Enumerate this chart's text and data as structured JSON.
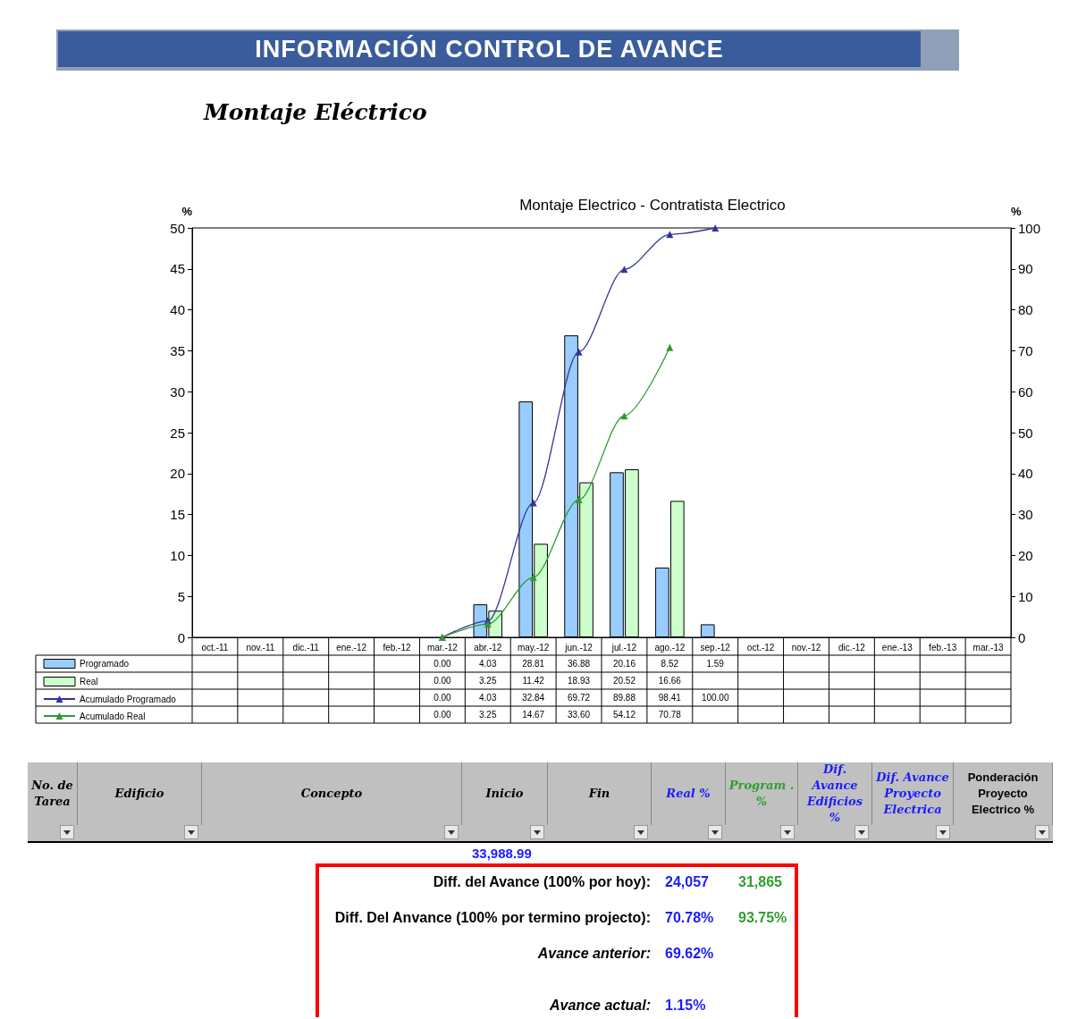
{
  "chart_data": {
    "type": "bar",
    "title": "INFORMACIÓN CONTROL DE AVANCE",
    "subtitle": "Montaje Eléctrico",
    "ylabel": "%",
    "y2label": "%",
    "categories": [
      "oct.-11",
      "nov.-11",
      "dic.-11",
      "ene.-12",
      "feb.-12",
      "mar.-12",
      "abr.-12",
      "may.-12",
      "jun.-12",
      "jul.-12",
      "ago.-12",
      "sep.-12",
      "oct.-12",
      "nov.-12",
      "dic.-12",
      "ene.-13",
      "feb.-13",
      "mar.-13"
    ],
    "series": [
      {
        "name": "Programado",
        "color": "#99ccff",
        "values": [
          null,
          null,
          null,
          null,
          null,
          0.0,
          4.03,
          28.81,
          36.88,
          20.16,
          8.52,
          1.59,
          null,
          null,
          null,
          null,
          null,
          null
        ],
        "value_labels": [
          null,
          null,
          null,
          null,
          null,
          "0.00",
          "4.03",
          "28.81",
          "36.88",
          "20.16",
          "8.52",
          "1.59",
          null,
          null,
          null,
          null,
          null,
          null
        ]
      },
      {
        "name": "Real",
        "color": "#ccffcc",
        "values": [
          null,
          null,
          null,
          null,
          null,
          0.0,
          3.25,
          11.42,
          18.93,
          20.52,
          16.66,
          null,
          null,
          null,
          null,
          null,
          null,
          null
        ],
        "value_labels": [
          null,
          null,
          null,
          null,
          null,
          "0.00",
          "3.25",
          "11.42",
          "18.93",
          "20.52",
          "16.66",
          null,
          null,
          null,
          null,
          null,
          null,
          null
        ]
      },
      {
        "name": "Acumulado Programado",
        "type": "line",
        "axis": "y2",
        "color": "#333399",
        "values": [
          null,
          null,
          null,
          null,
          null,
          0.0,
          4.03,
          32.84,
          69.72,
          89.88,
          98.41,
          100.0,
          null,
          null,
          null,
          null,
          null,
          null
        ],
        "value_labels": [
          null,
          null,
          null,
          null,
          null,
          "0.00",
          "4.03",
          "32.84",
          "69.72",
          "89.88",
          "98.41",
          "100.00",
          null,
          null,
          null,
          null,
          null,
          null
        ]
      },
      {
        "name": "Acumulado Real",
        "type": "line",
        "axis": "y2",
        "color": "#339933",
        "values": [
          null,
          null,
          null,
          null,
          null,
          0.0,
          3.25,
          14.67,
          33.6,
          54.12,
          70.78,
          null,
          null,
          null,
          null,
          null,
          null,
          null
        ],
        "value_labels": [
          null,
          null,
          null,
          null,
          null,
          "0.00",
          "3.25",
          "14.67",
          "33.60",
          "54.12",
          "70.78",
          null,
          null,
          null,
          null,
          null,
          null,
          null
        ]
      }
    ],
    "ylim": [
      0,
      50
    ],
    "yticks": [
      0,
      5,
      10,
      15,
      20,
      25,
      30,
      35,
      40,
      45,
      50
    ],
    "y2lim": [
      0,
      100
    ],
    "y2ticks": [
      0,
      10,
      20,
      30,
      40,
      50,
      60,
      70,
      80,
      90,
      100
    ],
    "grid": false,
    "legend": "bottom",
    "marker": "triangle",
    "line_style": "solid",
    "annotations": [
      "Montaje Electrico - Contratista Electrico",
      "No. de Tarea",
      "Edificio",
      "Concepto",
      "Inicio",
      "Fin",
      "Real %",
      "Program . %",
      "Dif. Avance Edificios %",
      "Dif. Avance Proyecto Electrica",
      "Ponderación Proyecto Electrico %",
      "33,988.99",
      "Diff. del Avance  (100% por hoy):",
      "24,057",
      "31,865",
      "Diff. Del Anvance (100% por termino projecto):",
      "70.78%",
      "93.75%",
      "Avance anterior:",
      "69.62%",
      "Avance actual:",
      "1.15%"
    ]
  }
}
